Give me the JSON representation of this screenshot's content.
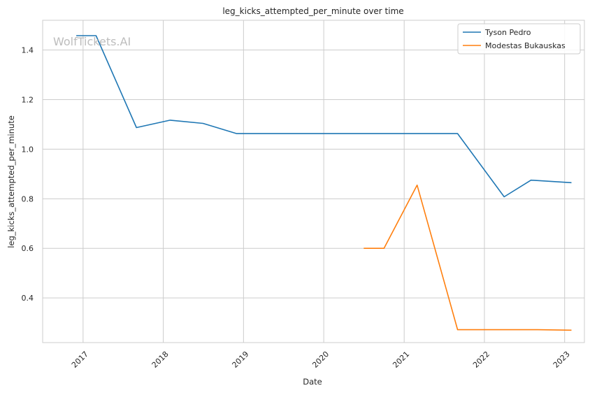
{
  "chart_data": {
    "type": "line",
    "title": "leg_kicks_attempted_per_minute over time",
    "xlabel": "Date",
    "ylabel": "leg_kicks_attempted_per_minute",
    "watermark": "WolfTickets.AI",
    "x_ticks": [
      "2017",
      "2018",
      "2019",
      "2020",
      "2021",
      "2022",
      "2023"
    ],
    "y_ticks": [
      "0.4",
      "0.6",
      "0.8",
      "1.0",
      "1.2",
      "1.4"
    ],
    "xlim": [
      "2016-07-01",
      "2023-04-01"
    ],
    "ylim": [
      0.22,
      1.52
    ],
    "grid": true,
    "legend_position": "top-right",
    "series": [
      {
        "name": "Tyson Pedro",
        "color": "#1f77b4",
        "points": [
          {
            "x": "2016-12-01",
            "y": 1.458
          },
          {
            "x": "2017-03-01",
            "y": 1.458
          },
          {
            "x": "2017-09-01",
            "y": 1.087
          },
          {
            "x": "2018-02-01",
            "y": 1.117
          },
          {
            "x": "2018-07-01",
            "y": 1.104
          },
          {
            "x": "2018-12-01",
            "y": 1.063
          },
          {
            "x": "2021-09-01",
            "y": 1.063
          },
          {
            "x": "2022-04-01",
            "y": 0.808
          },
          {
            "x": "2022-08-01",
            "y": 0.875
          },
          {
            "x": "2023-02-01",
            "y": 0.865
          }
        ]
      },
      {
        "name": "Modestas Bukauskas",
        "color": "#ff7f0e",
        "points": [
          {
            "x": "2020-07-01",
            "y": 0.6
          },
          {
            "x": "2020-10-01",
            "y": 0.6
          },
          {
            "x": "2021-03-01",
            "y": 0.855
          },
          {
            "x": "2021-09-01",
            "y": 0.272
          },
          {
            "x": "2022-09-01",
            "y": 0.272
          },
          {
            "x": "2023-02-01",
            "y": 0.27
          }
        ]
      }
    ]
  }
}
